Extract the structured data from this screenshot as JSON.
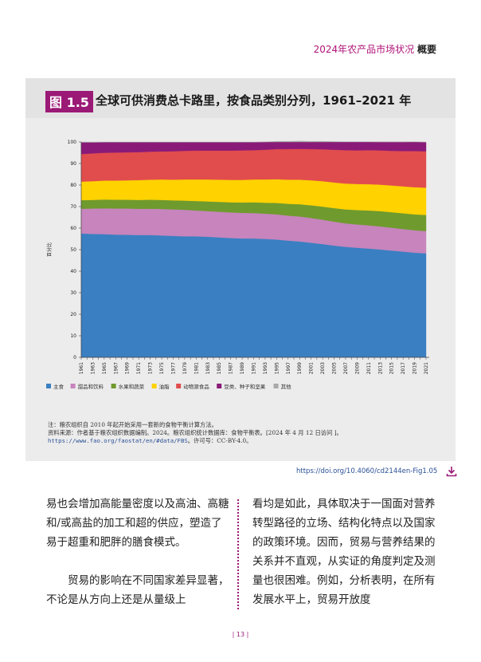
{
  "header": {
    "prefix": "2024年农产品市场状况",
    "bold": "概要"
  },
  "figure": {
    "number": "图 1.5",
    "title": "全球可供消费总卡路里，按食品类别分列，1961–2021 年",
    "note": "注：粮农组织自 2010 年起开始采用一套新的食物平衡计算方法。",
    "source": "资料来源：作者基于粮农组织数据编制。2024。粮农组织统计数据库：食物平衡表。[2024 年 4 月 12 日访问 ]。",
    "source_url": "https://www.fao.org/faostat/en/#data/FBS",
    "license": "。许可号：CC-BY-4.0。",
    "doi": "https://doi.org/10.4060/cd2144en-Fig1.05"
  },
  "colors": {
    "accent": "#9b1a76",
    "link": "#2a4f95"
  },
  "chart_data": {
    "type": "area",
    "stacked": true,
    "ylabel": "百分比",
    "xlabel": "",
    "ylim": [
      0,
      100
    ],
    "yticks": [
      0,
      10,
      20,
      30,
      40,
      50,
      60,
      70,
      80,
      90,
      100
    ],
    "x": [
      1961,
      1963,
      1965,
      1967,
      1969,
      1971,
      1973,
      1975,
      1977,
      1979,
      1981,
      1983,
      1985,
      1987,
      1989,
      1991,
      1993,
      1995,
      1997,
      1999,
      2001,
      2003,
      2005,
      2007,
      2009,
      2011,
      2013,
      2015,
      2017,
      2019,
      2021
    ],
    "legend_position": "bottom",
    "series": [
      {
        "name": "主食",
        "color": "#3a7fc1",
        "values": [
          57.5,
          57.3,
          57.2,
          57.0,
          56.9,
          56.8,
          56.8,
          56.6,
          56.4,
          56.2,
          56.2,
          56.0,
          55.7,
          55.4,
          55.2,
          55.2,
          55.0,
          54.7,
          54.2,
          53.8,
          53.2,
          52.6,
          51.9,
          51.3,
          50.9,
          50.5,
          50.1,
          49.6,
          49.1,
          48.6,
          48.3
        ]
      },
      {
        "name": "甜品和饮料",
        "color": "#c784bd",
        "values": [
          11.5,
          11.8,
          12.0,
          12.1,
          12.2,
          12.2,
          12.2,
          12.3,
          12.3,
          12.3,
          12.0,
          11.9,
          11.9,
          11.9,
          11.9,
          11.8,
          11.7,
          11.7,
          11.6,
          11.6,
          11.5,
          11.3,
          11.1,
          10.9,
          10.8,
          10.8,
          10.7,
          10.6,
          10.5,
          10.4,
          10.3
        ]
      },
      {
        "name": "水果和蔬菜",
        "color": "#6f9a2e",
        "values": [
          4.0,
          4.0,
          4.1,
          4.1,
          4.1,
          4.1,
          4.2,
          4.2,
          4.2,
          4.3,
          4.4,
          4.5,
          4.6,
          4.7,
          4.8,
          5.0,
          5.1,
          5.3,
          5.5,
          5.7,
          5.9,
          6.1,
          6.3,
          6.5,
          6.7,
          6.9,
          7.1,
          7.2,
          7.3,
          7.4,
          7.5
        ]
      },
      {
        "name": "油脂",
        "color": "#ffd200",
        "values": [
          8.6,
          8.7,
          8.8,
          8.9,
          9.0,
          9.2,
          9.3,
          9.5,
          9.6,
          9.8,
          10.0,
          10.2,
          10.3,
          10.4,
          10.5,
          10.6,
          10.8,
          11.0,
          11.2,
          11.4,
          11.6,
          11.8,
          11.9,
          12.0,
          12.1,
          12.2,
          12.3,
          12.4,
          12.5,
          12.6,
          12.7
        ]
      },
      {
        "name": "动物源食品",
        "color": "#e14c4d",
        "values": [
          12.8,
          12.9,
          12.9,
          13.0,
          13.0,
          13.0,
          13.0,
          13.0,
          13.2,
          13.3,
          13.4,
          13.4,
          13.5,
          13.6,
          13.7,
          13.6,
          13.8,
          14.0,
          14.2,
          14.3,
          14.5,
          14.8,
          15.2,
          15.5,
          15.6,
          15.8,
          15.9,
          16.1,
          16.4,
          16.8,
          16.9
        ]
      },
      {
        "name": "豆类、种子和坚果",
        "color": "#8a1a78",
        "values": [
          5.4,
          5.1,
          4.9,
          4.8,
          4.7,
          4.6,
          4.4,
          4.3,
          4.2,
          4.0,
          3.9,
          3.9,
          3.9,
          3.9,
          3.8,
          3.7,
          3.6,
          3.6,
          3.6,
          3.6,
          3.6,
          3.7,
          3.8,
          3.9,
          4.0,
          3.9,
          3.9,
          4.1,
          4.2,
          4.3,
          4.2
        ]
      },
      {
        "name": "其他",
        "color": "#a9a9a9",
        "values": [
          0.2,
          0.2,
          0.1,
          0.1,
          0.1,
          0.1,
          0.1,
          0.1,
          0.1,
          0.1,
          0.1,
          0.1,
          0.1,
          0.1,
          0.1,
          0.1,
          0.0,
          0.0,
          0.0,
          0.0,
          0.0,
          0.0,
          0.0,
          0.0,
          0.0,
          0.0,
          0.0,
          0.0,
          0.0,
          0.0,
          0.1
        ]
      }
    ]
  },
  "body": {
    "left_p1": "易也会增加高能量密度以及高油、高糖和/或高盐的加工和超的供应，塑造了易于超重和肥胖的膳食模式。",
    "left_p2": "贸易的影响在不同国家差异显著，不论是从方向上还是从量级上",
    "right_p1": "看均是如此，具体取决于一国面对营养转型路径的立场、结构化特点以及国家的政策环境。因而，贸易与营养结果的关系并不直观，从实证的角度判定及测量也很困难。例如，分析表明，在所有发展水平上，贸易开放度"
  },
  "page_number": "| 13 |"
}
